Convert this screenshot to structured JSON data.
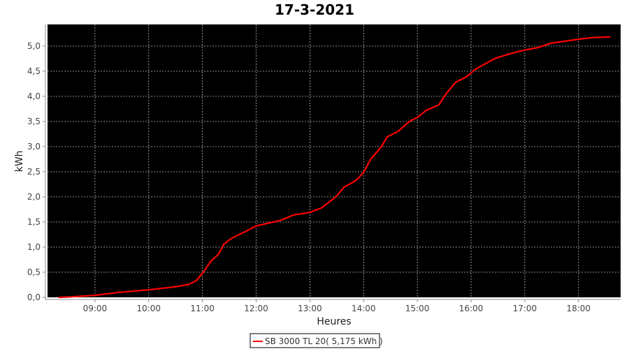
{
  "chart_data": {
    "type": "line",
    "title": "17-3-2021",
    "xlabel": "Heures",
    "ylabel": "kWh",
    "xlim": [
      "08:07",
      "18:47"
    ],
    "ylim": [
      0,
      5.43
    ],
    "x_ticks": [
      "09:00",
      "10:00",
      "11:00",
      "12:00",
      "13:00",
      "14:00",
      "15:00",
      "16:00",
      "17:00",
      "18:00"
    ],
    "y_ticks": [
      "0,0",
      "0,5",
      "1,0",
      "1,5",
      "2,0",
      "2,5",
      "3,0",
      "3,5",
      "4,0",
      "4,5",
      "5,0"
    ],
    "grid": true,
    "legend_placement": "bottom",
    "background": "#000000",
    "series": [
      {
        "name": "SB 3000 TL 20( 5,175 kWh )",
        "color": "#ff0000",
        "x": [
          "08:20",
          "08:33",
          "09:00",
          "09:27",
          "10:00",
          "10:30",
          "10:45",
          "10:53",
          "11:01",
          "11:09",
          "11:18",
          "11:24",
          "11:32",
          "11:48",
          "12:00",
          "12:27",
          "12:42",
          "13:00",
          "13:13",
          "13:29",
          "13:38",
          "13:52",
          "14:00",
          "14:08",
          "14:20",
          "14:26",
          "14:39",
          "14:51",
          "15:00",
          "15:10",
          "15:24",
          "15:33",
          "15:43",
          "15:55",
          "16:05",
          "16:20",
          "16:28",
          "16:44",
          "17:00",
          "17:15",
          "17:30",
          "17:46",
          "18:02",
          "18:17",
          "18:35"
        ],
        "y": [
          0.0,
          0.01,
          0.04,
          0.1,
          0.15,
          0.21,
          0.26,
          0.33,
          0.5,
          0.71,
          0.86,
          1.06,
          1.17,
          1.31,
          1.42,
          1.53,
          1.64,
          1.69,
          1.78,
          2.0,
          2.19,
          2.33,
          2.49,
          2.75,
          3.0,
          3.19,
          3.31,
          3.5,
          3.58,
          3.72,
          3.83,
          4.07,
          4.28,
          4.39,
          4.54,
          4.69,
          4.76,
          4.85,
          4.92,
          4.97,
          5.06,
          5.1,
          5.14,
          5.17,
          5.18
        ]
      }
    ]
  }
}
